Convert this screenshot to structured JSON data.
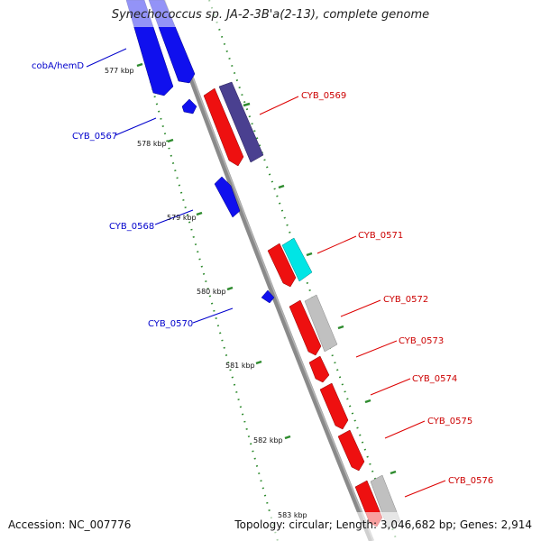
{
  "title": {
    "species": "Synechococcus sp. JA-2-3B'a(2-13)",
    "suffix": ", complete genome"
  },
  "footer": {
    "accession": "Accession: NC_007776",
    "stats": "Topology: circular; Length: 3,046,682 bp; Genes: 2,914"
  },
  "colors": {
    "backbone": "#8a8a8a",
    "tick": "#2e8b2e",
    "forward_gene": "#0000ee",
    "reverse_gene": "#ee0000",
    "reverse_label": "#cc0000",
    "forward_label": "#0000cc",
    "dark_gene": "#4a4090",
    "cyan_gene": "#00e5e5",
    "grey_gene": "#c0c0c0"
  },
  "scale_labels": [
    "577 kbp",
    "578 kbp",
    "579 kbp",
    "580 kbp",
    "581 kbp",
    "582 kbp",
    "583 kbp"
  ],
  "genes_forward": [
    {
      "name": "cobA/hemD"
    },
    {
      "name": "CYB_0567"
    },
    {
      "name": "CYB_0568"
    },
    {
      "name": "CYB_0570"
    }
  ],
  "genes_reverse": [
    {
      "name": "CYB_0569"
    },
    {
      "name": "CYB_0571"
    },
    {
      "name": "CYB_0572"
    },
    {
      "name": "CYB_0573"
    },
    {
      "name": "CYB_0574"
    },
    {
      "name": "CYB_0575"
    },
    {
      "name": "CYB_0576"
    }
  ]
}
